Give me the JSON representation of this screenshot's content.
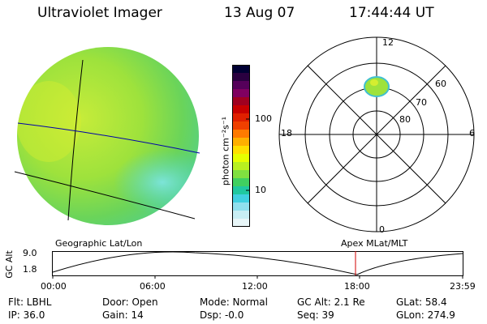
{
  "header": {
    "title": "Ultraviolet Imager",
    "date": "13 Aug 07",
    "time": "17:44:44 UT"
  },
  "colorbar": {
    "unit_label": "photon cm⁻²s⁻¹",
    "ticks": [
      "100",
      "10"
    ],
    "colors": [
      "#000033",
      "#2a0040",
      "#55005a",
      "#800060",
      "#a00020",
      "#c80000",
      "#e02000",
      "#f04000",
      "#ff7a00",
      "#ffb000",
      "#ffe000",
      "#e6ff00",
      "#b8f020",
      "#80e040",
      "#40d060",
      "#20c8a0",
      "#40d0e0",
      "#90e0ee",
      "#c8eef4",
      "#e8f6f8"
    ]
  },
  "polar_plot": {
    "mlt_labels": {
      "top": "12",
      "right": "6",
      "bottom": "0",
      "left": "18"
    },
    "lat_labels": [
      "60",
      "70",
      "80"
    ]
  },
  "timeline": {
    "left_label": "Geographic Lat/Lon",
    "right_label": "Apex MLat/MLT",
    "y_axis_label": "GC Alt",
    "y_ticks": [
      "9.0",
      "1.8"
    ],
    "x_ticks": [
      "00:00",
      "06:00",
      "12:00",
      "18:00",
      "23:59"
    ],
    "marker_color": "#d00000"
  },
  "info": {
    "filter": "Flt: LBHL",
    "ip": "IP: 36.0",
    "door": "Door: Open",
    "gain": "Gain: 14",
    "mode": "Mode: Normal",
    "dsp": "Dsp:   -0.0",
    "gc_alt": "GC Alt: 2.1 Re",
    "seq": "Seq: 39",
    "glat": "GLat:  58.4",
    "glon": "GLon: 274.9"
  }
}
